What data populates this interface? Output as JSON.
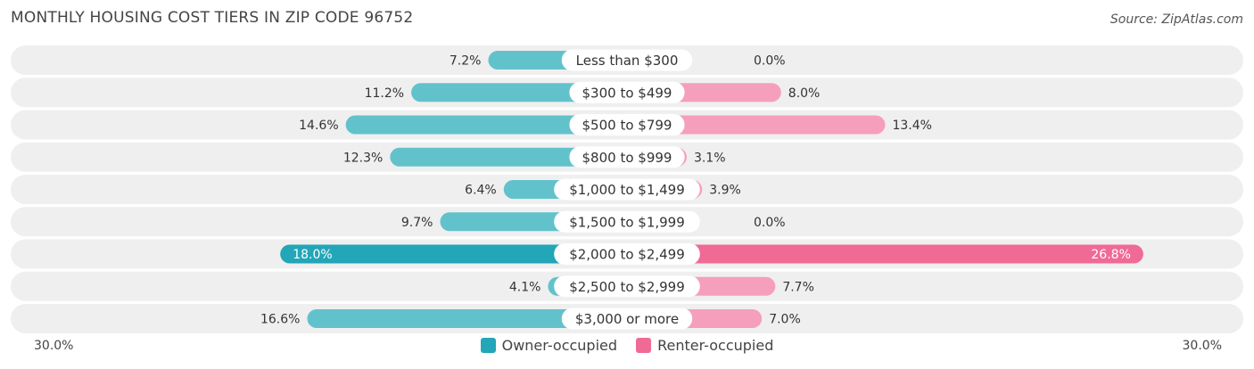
{
  "header": {
    "title": "MONTHLY HOUSING COST TIERS IN ZIP CODE 96752",
    "source": "Source: ZipAtlas.com"
  },
  "colors": {
    "owner": "#62c2cc",
    "owner_strong": "#22a6b8",
    "renter": "#f59fbd",
    "renter_strong": "#f06a96",
    "row_bg": "#efefef"
  },
  "chart_data": {
    "type": "bar",
    "orientation": "horizontal-diverging",
    "xlim": [
      -30,
      30
    ],
    "axis_labels": {
      "left": "30.0%",
      "right": "30.0%"
    },
    "legend_placement": "bottom-center",
    "categories": [
      "Less than $300",
      "$300 to $499",
      "$500 to $799",
      "$800 to $999",
      "$1,000 to $1,499",
      "$1,500 to $1,999",
      "$2,000 to $2,499",
      "$2,500 to $2,999",
      "$3,000 or more"
    ],
    "series": [
      {
        "name": "Owner-occupied",
        "values": [
          7.2,
          11.2,
          14.6,
          12.3,
          6.4,
          9.7,
          18.0,
          4.1,
          16.6
        ],
        "labels": [
          "7.2%",
          "11.2%",
          "14.6%",
          "12.3%",
          "6.4%",
          "9.7%",
          "18.0%",
          "4.1%",
          "16.6%"
        ]
      },
      {
        "name": "Renter-occupied",
        "values": [
          0.0,
          8.0,
          13.4,
          3.1,
          3.9,
          0.0,
          26.8,
          7.7,
          7.0
        ],
        "labels": [
          "0.0%",
          "8.0%",
          "13.4%",
          "3.1%",
          "3.9%",
          "0.0%",
          "26.8%",
          "7.7%",
          "7.0%"
        ]
      }
    ]
  }
}
